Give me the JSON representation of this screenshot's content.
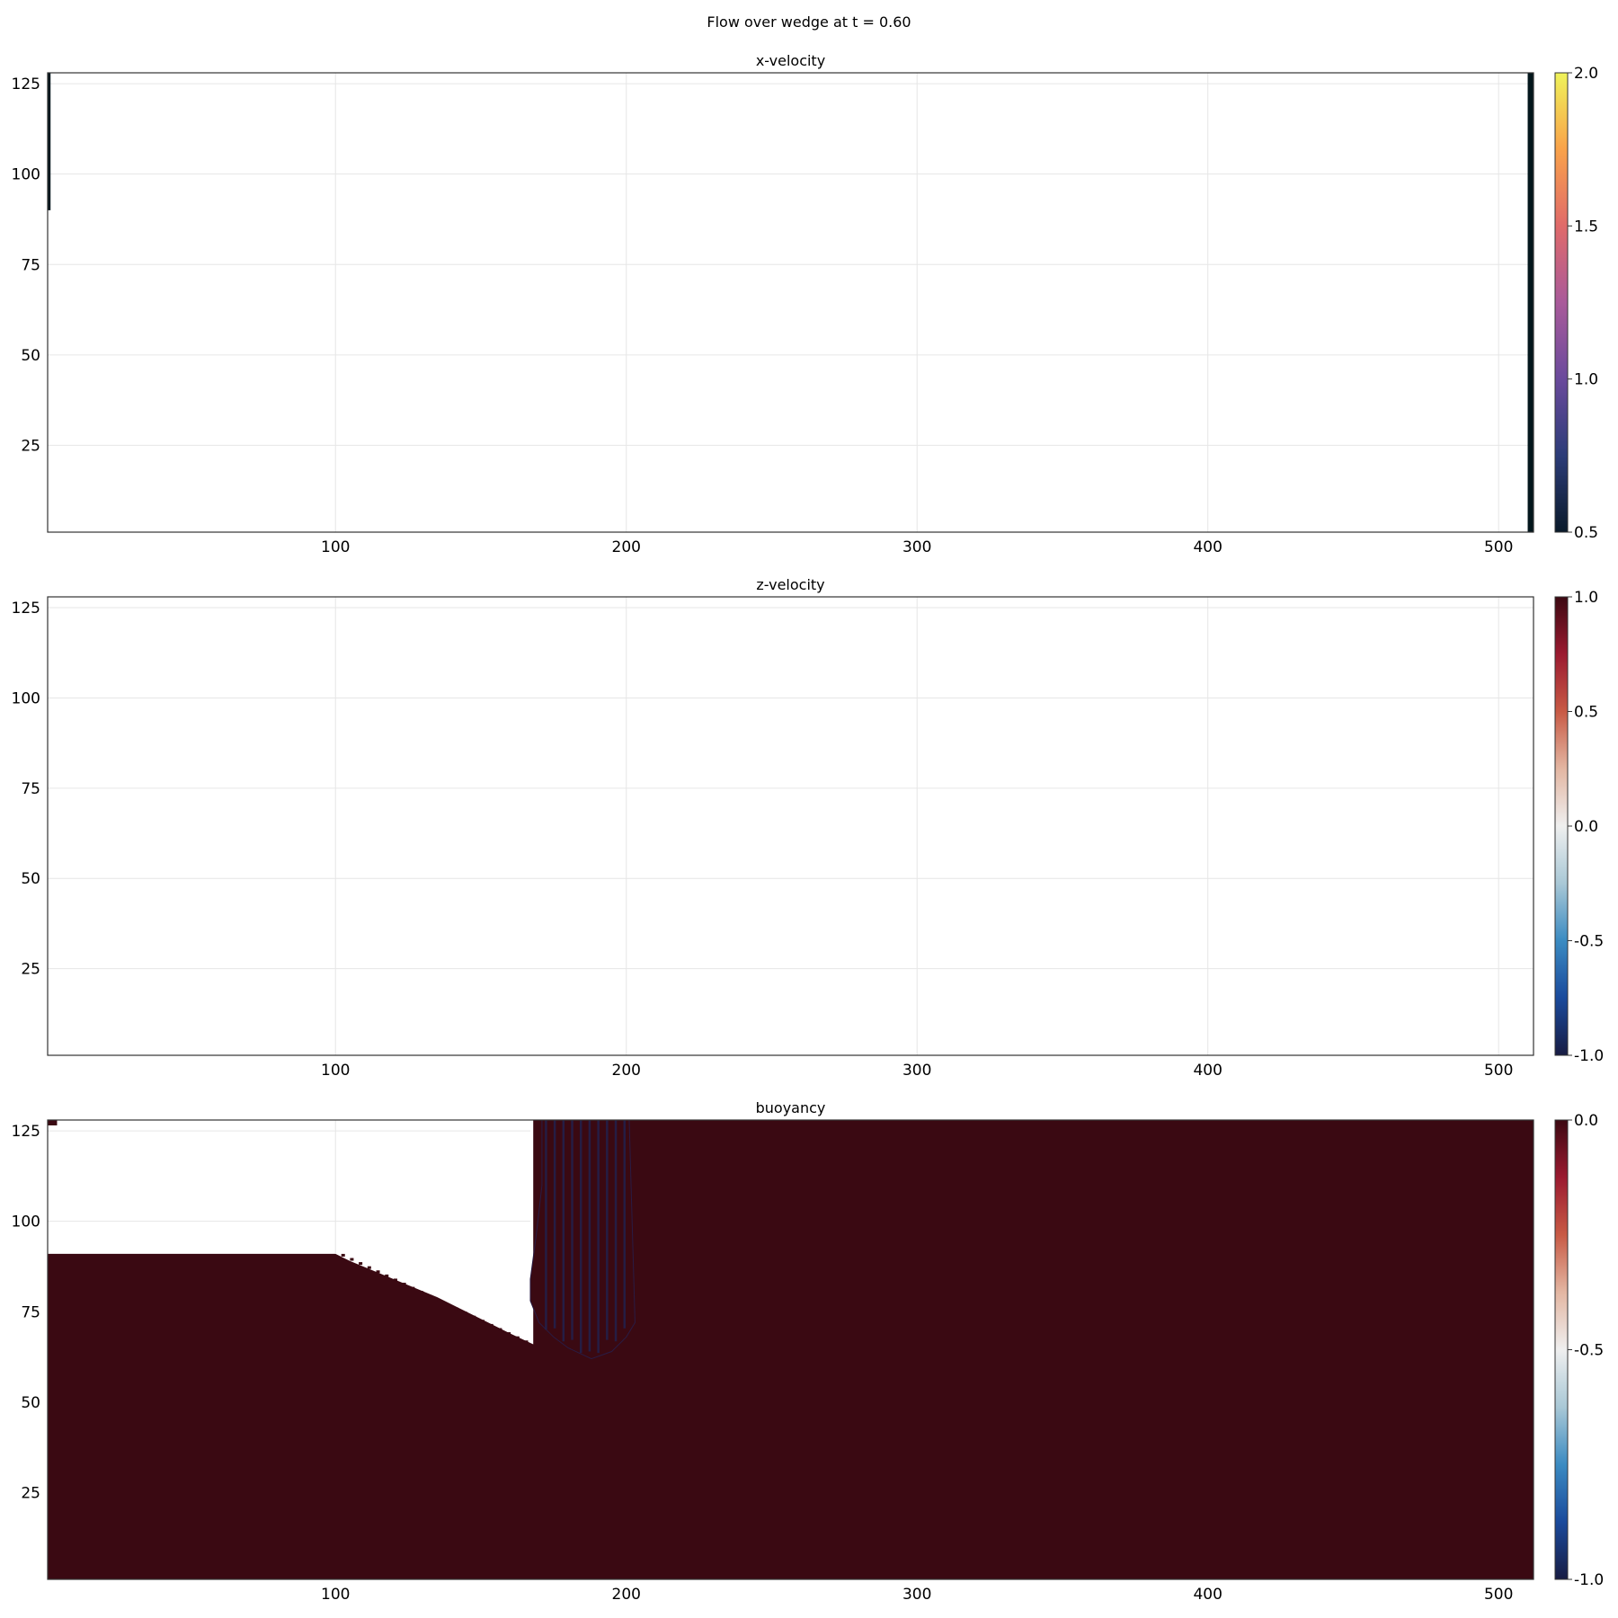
{
  "figure": {
    "title": "Flow over wedge at t = 0.60"
  },
  "chart_data": [
    {
      "type": "heatmap",
      "title": "x-velocity",
      "xlim": [
        1,
        512
      ],
      "ylim": [
        1,
        128
      ],
      "xticks": [
        100,
        200,
        300,
        400,
        500
      ],
      "yticks": [
        25,
        50,
        75,
        100,
        125
      ],
      "grid": true,
      "colorbar": {
        "colormap": "thermal",
        "range": [
          0.5,
          2.0
        ],
        "ticks": [
          "0.5",
          "1.0",
          "1.5",
          "2.0"
        ],
        "tick_values": [
          0.5,
          1.0,
          1.5,
          2.0
        ],
        "stops": [
          "#0a1a2a",
          "#2c3c78",
          "#6a4a9c",
          "#a95a9a",
          "#e06a6a",
          "#f9a24a",
          "#eff35a"
        ]
      },
      "features": [
        {
          "kind": "column",
          "x_range": [
            1,
            2
          ],
          "y_range": [
            90,
            128
          ],
          "color": "#03161c"
        },
        {
          "kind": "column",
          "x_range": [
            510,
            512
          ],
          "y_range": [
            1,
            128
          ],
          "color": "#03161c"
        }
      ]
    },
    {
      "type": "heatmap",
      "title": "z-velocity",
      "xlim": [
        1,
        512
      ],
      "ylim": [
        1,
        128
      ],
      "xticks": [
        100,
        200,
        300,
        400,
        500
      ],
      "yticks": [
        25,
        50,
        75,
        100,
        125
      ],
      "grid": true,
      "colorbar": {
        "colormap": "balance",
        "range": [
          -1.0,
          1.0
        ],
        "ticks": [
          "-1.0",
          "-0.5",
          "0.0",
          "0.5",
          "1.0"
        ],
        "tick_values": [
          -1.0,
          -0.5,
          0.0,
          0.5,
          1.0
        ],
        "stops": [
          "#181c43",
          "#1a4a9c",
          "#3b8bc2",
          "#a9c8d6",
          "#efefef",
          "#e3b6a2",
          "#c85a45",
          "#9b1a30",
          "#3c0912"
        ]
      },
      "features": []
    },
    {
      "type": "heatmap",
      "title": "buoyancy",
      "xlim": [
        1,
        512
      ],
      "ylim": [
        1,
        128
      ],
      "xticks": [
        100,
        200,
        300,
        400,
        500
      ],
      "yticks": [
        25,
        50,
        75,
        100,
        125
      ],
      "grid": true,
      "colorbar": {
        "colormap": "balance",
        "range": [
          -1.0,
          0.0
        ],
        "ticks": [
          "-1.0",
          "-0.5",
          "0.0"
        ],
        "tick_values": [
          -1.0,
          -0.5,
          0.0
        ],
        "stops": [
          "#181c43",
          "#1a4a9c",
          "#3b8bc2",
          "#a9c8d6",
          "#efefef",
          "#e3b6a2",
          "#c85a45",
          "#9b1a30",
          "#3c0912"
        ]
      },
      "fill_color": "#3a0912",
      "white_region": [
        [
          1,
          128
        ],
        [
          1,
          91
        ],
        [
          100,
          91
        ],
        [
          105,
          89
        ],
        [
          120,
          84
        ],
        [
          135,
          79
        ],
        [
          150,
          73
        ],
        [
          160,
          69
        ],
        [
          168,
          66
        ],
        [
          168,
          128
        ]
      ],
      "plume": {
        "outline": [
          [
            168,
            128
          ],
          [
            171,
            128
          ],
          [
            171,
            110
          ],
          [
            169,
            96
          ],
          [
            167,
            84
          ],
          [
            167,
            78
          ],
          [
            170,
            72
          ],
          [
            175,
            68
          ],
          [
            180,
            65
          ],
          [
            188,
            62
          ],
          [
            195,
            64
          ],
          [
            200,
            68
          ],
          [
            203,
            72
          ],
          [
            201,
            128
          ]
        ],
        "stripe_color": "#23204a",
        "stripe_x": [
          172,
          175,
          178,
          181,
          184,
          187,
          190,
          193,
          196,
          199
        ],
        "base_color": "#2a1c44"
      },
      "corner_mark": {
        "x_range": [
          1,
          3
        ],
        "y_range": [
          126,
          128
        ],
        "color": "#3a0912"
      }
    }
  ]
}
